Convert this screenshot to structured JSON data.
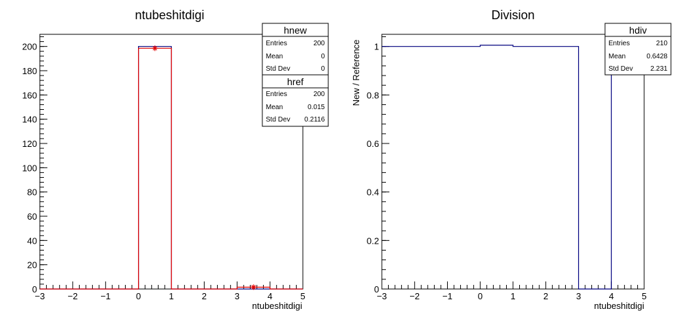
{
  "chart_data": [
    {
      "type": "histogram",
      "title": "ntubeshitdigi",
      "xlabel": "ntubeshitdigi",
      "ylabel": "",
      "xlim": [
        -3,
        5
      ],
      "ylim": [
        0,
        210
      ],
      "xticks": [
        "−3",
        "−2",
        "−1",
        "0",
        "1",
        "2",
        "3",
        "4",
        "5"
      ],
      "yticks": [
        "0",
        "20",
        "40",
        "60",
        "80",
        "100",
        "120",
        "140",
        "160",
        "180",
        "200"
      ],
      "bin_edges": [
        -3,
        -2,
        -1,
        0,
        1,
        2,
        3,
        4,
        5
      ],
      "series": [
        {
          "name": "hnew",
          "color": "#00007f",
          "values": [
            0,
            0,
            0,
            200,
            0,
            0,
            0,
            0
          ]
        },
        {
          "name": "href",
          "color": "#e00000",
          "values": [
            0,
            0,
            0,
            198.5,
            0,
            0,
            1.5,
            0
          ],
          "markers": [
            {
              "x": 0.5,
              "y": 198.5
            },
            {
              "x": 3.5,
              "y": 1.5
            }
          ]
        }
      ],
      "stats": [
        {
          "name": "hnew",
          "rows": [
            {
              "label": "Entries",
              "value": "200"
            },
            {
              "label": "Mean",
              "value": "0"
            },
            {
              "label": "Std Dev",
              "value": "0"
            }
          ]
        },
        {
          "name": "href",
          "rows": [
            {
              "label": "Entries",
              "value": "200"
            },
            {
              "label": "Mean",
              "value": "0.015"
            },
            {
              "label": "Std Dev",
              "value": "0.2116"
            }
          ]
        }
      ]
    },
    {
      "type": "histogram",
      "title": "Division",
      "xlabel": "ntubeshitdigi",
      "ylabel": "New / Reference",
      "xlim": [
        -3,
        5
      ],
      "ylim": [
        0,
        1.05
      ],
      "xticks": [
        "−3",
        "−2",
        "−1",
        "0",
        "1",
        "2",
        "3",
        "4",
        "5"
      ],
      "yticks": [
        "0",
        "0.2",
        "0.4",
        "0.6",
        "0.8",
        "1"
      ],
      "bin_edges": [
        -3,
        -2,
        -1,
        0,
        1,
        2,
        3,
        4,
        5
      ],
      "series": [
        {
          "name": "hdiv",
          "color": "#00007f",
          "values": [
            1,
            1,
            1,
            1.005,
            1,
            1,
            0,
            1
          ]
        }
      ],
      "stats": [
        {
          "name": "hdiv",
          "rows": [
            {
              "label": "Entries",
              "value": "210"
            },
            {
              "label": "Mean",
              "value": "0.6428"
            },
            {
              "label": "Std Dev",
              "value": "2.231"
            }
          ]
        }
      ]
    }
  ]
}
